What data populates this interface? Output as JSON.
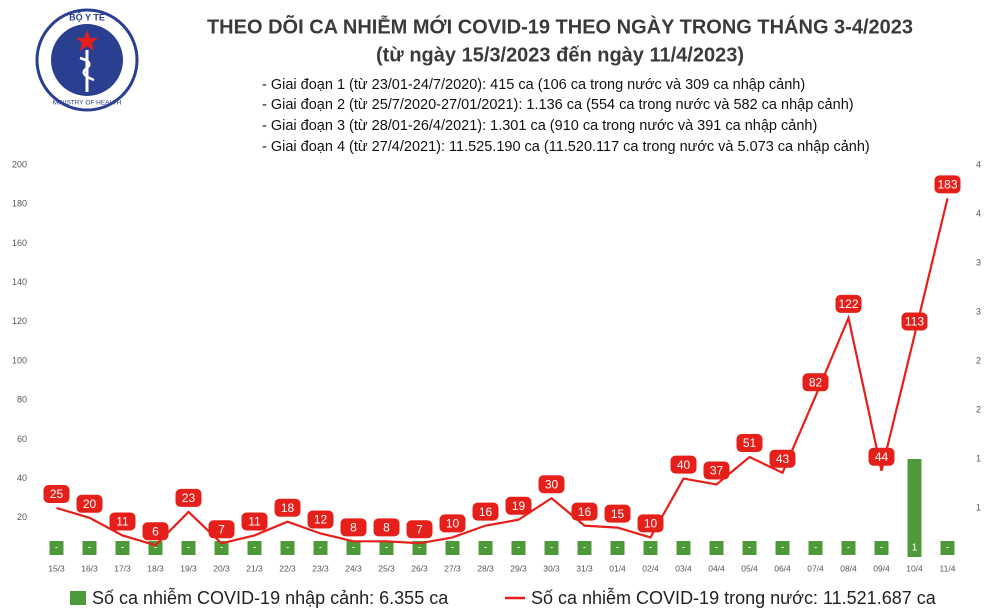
{
  "chart_data": {
    "type": "bar-line",
    "logo": {
      "top": "BỘ Y TẾ",
      "bottom": "MINISTRY OF HEALTH"
    },
    "title": "THEO DÕI CA NHIỄM MỚI COVID-19 THEO NGÀY TRONG THÁNG 3-4/2023",
    "subtitle": "(từ ngày 15/3/2023 đến ngày 11/4/2023)",
    "annotations": [
      "- Giai đoạn 1 (từ 23/01-24/7/2020): 415 ca (106 ca trong nước và 309 ca nhập cảnh)",
      "- Giai đoạn 2 (từ 25/7/2020-27/01/2021): 1.136 ca (554 ca trong nước và 582 ca nhập cảnh)",
      "- Giai đoạn 3 (từ 28/01-26/4/2021): 1.301 ca (910 ca trong nước và 391 ca nhập cảnh)",
      "- Giai đoạn 4 (từ 27/4/2021): 11.525.190 ca (11.520.117 ca trong nước và 5.073 ca nhập cảnh)"
    ],
    "categories": [
      "15/3",
      "16/3",
      "17/3",
      "18/3",
      "19/3",
      "20/3",
      "21/3",
      "22/3",
      "23/3",
      "24/3",
      "25/3",
      "26/3",
      "27/3",
      "28/3",
      "29/3",
      "30/3",
      "31/3",
      "01/4",
      "02/4",
      "03/4",
      "04/4",
      "05/4",
      "06/4",
      "07/4",
      "08/4",
      "09/4",
      "10/4",
      "11/4"
    ],
    "series": [
      {
        "name": "Số ca nhiễm COVID-19 nhập cảnh: 6.355 ca",
        "type": "bar",
        "axis": "y2",
        "color": "#4e9a3a",
        "values": [
          0,
          0,
          0,
          0,
          0,
          0,
          0,
          0,
          0,
          0,
          0,
          0,
          0,
          0,
          0,
          0,
          0,
          0,
          0,
          0,
          0,
          0,
          0,
          0,
          0,
          0,
          1,
          0
        ],
        "value_labels": [
          "-",
          "-",
          "-",
          "-",
          "-",
          "-",
          "-",
          "-",
          "-",
          "-",
          "-",
          "-",
          "-",
          "-",
          "-",
          "-",
          "-",
          "-",
          "-",
          "-",
          "-",
          "-",
          "-",
          "-",
          "-",
          "-",
          "1",
          "-"
        ]
      },
      {
        "name": "Số ca nhiễm COVID-19 trong nước: 11.521.687 ca",
        "type": "line",
        "color": "#e5201b",
        "values": [
          25,
          20,
          11,
          6,
          23,
          7,
          11,
          18,
          12,
          8,
          8,
          7,
          10,
          16,
          19,
          30,
          16,
          15,
          10,
          40,
          37,
          51,
          43,
          82,
          122,
          44,
          113,
          183
        ]
      }
    ],
    "ylim": [
      0,
      200
    ],
    "yticks": [
      20,
      40,
      60,
      80,
      100,
      120,
      140,
      160,
      180,
      200
    ],
    "y2lim": [
      0,
      4
    ],
    "y2ticks": [
      {
        "value": 0.5,
        "label": "1"
      },
      {
        "value": 1,
        "label": "1"
      },
      {
        "value": 1.5,
        "label": "2"
      },
      {
        "value": 2,
        "label": "2"
      },
      {
        "value": 2.5,
        "label": "3"
      },
      {
        "value": 3,
        "label": "3"
      },
      {
        "value": 3.5,
        "label": "4"
      },
      {
        "value": 4,
        "label": "4"
      }
    ],
    "grid": false
  }
}
